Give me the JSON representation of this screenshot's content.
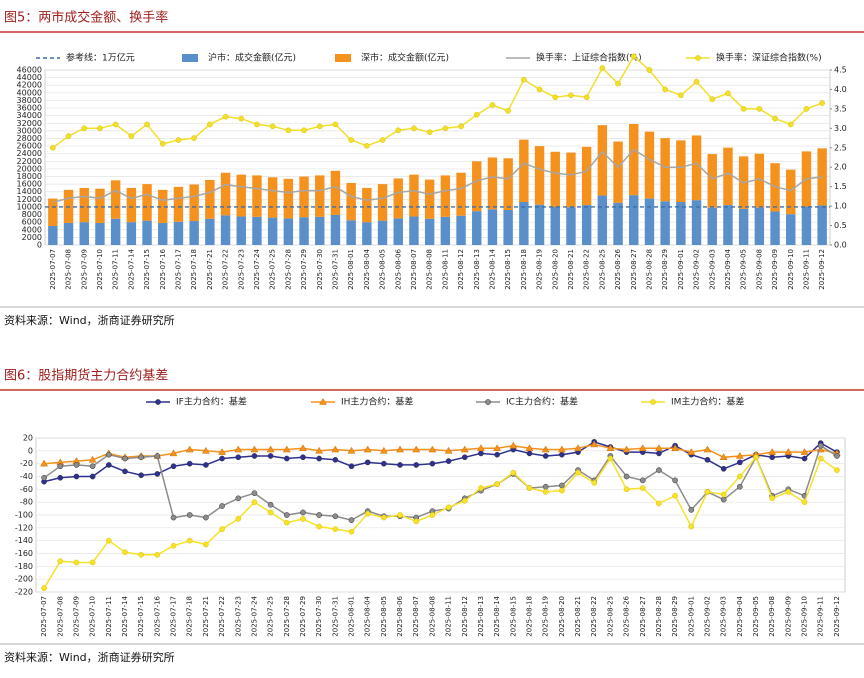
{
  "chart_data": [
    {
      "type": "combo",
      "title": "图5：两市成交金额、换手率",
      "source": "资料来源：Wind，浙商证券研究所",
      "categories": [
        "2025-07-07",
        "2025-07-08",
        "2025-07-09",
        "2025-07-10",
        "2025-07-11",
        "2025-07-14",
        "2025-07-15",
        "2025-07-16",
        "2025-07-17",
        "2025-07-18",
        "2025-07-21",
        "2025-07-22",
        "2025-07-23",
        "2025-07-24",
        "2025-07-25",
        "2025-07-28",
        "2025-07-29",
        "2025-07-30",
        "2025-07-31",
        "2025-08-01",
        "2025-08-04",
        "2025-08-05",
        "2025-08-06",
        "2025-08-07",
        "2025-08-08",
        "2025-08-11",
        "2025-08-12",
        "2025-08-13",
        "2025-08-14",
        "2025-08-15",
        "2025-08-18",
        "2025-08-19",
        "2025-08-20",
        "2025-08-21",
        "2025-08-22",
        "2025-08-25",
        "2025-08-26",
        "2025-08-27",
        "2025-08-28",
        "2025-08-29",
        "2025-09-01",
        "2025-09-02",
        "2025-09-03",
        "2025-09-04",
        "2025-09-05",
        "2025-09-08",
        "2025-09-09",
        "2025-09-10",
        "2025-09-11",
        "2025-09-12"
      ],
      "reference_line": {
        "name": "参考线：1万亿元",
        "value": 10000,
        "color": "#3a6ea8"
      },
      "series": [
        {
          "name": "沪市：成交金额(亿元)",
          "type": "bar",
          "color": "#5b8fc9",
          "values": [
            5000,
            5800,
            6000,
            5800,
            6900,
            6000,
            6400,
            5800,
            6100,
            6300,
            6900,
            7800,
            7500,
            7400,
            7200,
            7000,
            7300,
            7400,
            7900,
            6500,
            6000,
            6400,
            7000,
            7500,
            6900,
            7400,
            7700,
            8900,
            9400,
            9200,
            11300,
            10600,
            10000,
            9900,
            10500,
            13000,
            11100,
            13100,
            12200,
            11500,
            11300,
            11800,
            9800,
            10500,
            9500,
            9800,
            8800,
            8100,
            10100,
            10400
          ]
        },
        {
          "name": "深市：成交金额(亿元)",
          "type": "bar",
          "color": "#f5921e",
          "values": [
            7200,
            8700,
            9000,
            9000,
            10100,
            9000,
            9600,
            8700,
            9200,
            9600,
            10200,
            11200,
            11000,
            10900,
            10600,
            10400,
            10700,
            10900,
            11600,
            9800,
            9000,
            9600,
            10500,
            11000,
            10300,
            10900,
            11300,
            13100,
            13600,
            13600,
            16400,
            15400,
            14500,
            14400,
            15300,
            18500,
            16100,
            18700,
            17600,
            16600,
            16200,
            17000,
            14100,
            15100,
            13800,
            14200,
            12700,
            11700,
            14500,
            15000
          ]
        },
        {
          "name": "换手率：上证综合指数(%)",
          "type": "line",
          "axis": "y2",
          "color": "#a6a6a6",
          "values": [
            1.1,
            1.2,
            1.25,
            1.2,
            1.4,
            1.2,
            1.3,
            1.15,
            1.2,
            1.25,
            1.35,
            1.55,
            1.5,
            1.45,
            1.4,
            1.35,
            1.4,
            1.4,
            1.5,
            1.25,
            1.15,
            1.2,
            1.35,
            1.4,
            1.3,
            1.4,
            1.45,
            1.65,
            1.75,
            1.7,
            2.1,
            1.95,
            1.85,
            1.8,
            1.9,
            2.4,
            2.0,
            2.45,
            2.2,
            2.0,
            2.0,
            2.1,
            1.7,
            1.85,
            1.6,
            1.7,
            1.5,
            1.4,
            1.7,
            1.75
          ]
        },
        {
          "name": "换手率：深证综合指数(%)",
          "type": "line",
          "axis": "y2",
          "marker": "circle",
          "color": "#f2df2c",
          "values": [
            2.5,
            2.8,
            3.0,
            3.0,
            3.1,
            2.8,
            3.1,
            2.6,
            2.7,
            2.75,
            3.1,
            3.3,
            3.25,
            3.1,
            3.05,
            2.95,
            2.95,
            3.05,
            3.1,
            2.7,
            2.55,
            2.7,
            2.95,
            3.0,
            2.9,
            3.0,
            3.05,
            3.35,
            3.6,
            3.45,
            4.25,
            4.0,
            3.8,
            3.85,
            3.8,
            4.55,
            4.15,
            4.85,
            4.5,
            4.0,
            3.85,
            4.2,
            3.75,
            3.9,
            3.5,
            3.5,
            3.25,
            3.1,
            3.5,
            3.65
          ]
        }
      ],
      "ylim": [
        0,
        46000
      ],
      "yticks": [
        0,
        2000,
        4000,
        6000,
        8000,
        10000,
        12000,
        14000,
        16000,
        18000,
        20000,
        22000,
        24000,
        26000,
        28000,
        30000,
        32000,
        34000,
        36000,
        38000,
        40000,
        42000,
        44000,
        46000
      ],
      "y2lim": [
        0,
        4.5
      ],
      "y2ticks": [
        {
          "value": 0,
          "label": "0.0"
        },
        {
          "value": 0.5,
          "label": "0.5"
        },
        {
          "value": 1,
          "label": "1.0"
        },
        {
          "value": 1.5,
          "label": "1.5"
        },
        {
          "value": 2,
          "label": "2.0"
        },
        {
          "value": 2.5,
          "label": "2.5"
        },
        {
          "value": 3,
          "label": "3.0"
        },
        {
          "value": 3.5,
          "label": "3.5"
        },
        {
          "value": 4,
          "label": "4.0"
        },
        {
          "value": 4.5,
          "label": "4.5"
        }
      ],
      "grid": true
    },
    {
      "type": "line",
      "title": "图6：股指期货主力合约基差",
      "source": "资料来源：Wind，浙商证券研究所",
      "categories": [
        "2025-07-07",
        "2025-07-08",
        "2025-07-09",
        "2025-07-10",
        "2025-07-11",
        "2025-07-14",
        "2025-07-15",
        "2025-07-16",
        "2025-07-17",
        "2025-07-18",
        "2025-07-21",
        "2025-07-22",
        "2025-07-23",
        "2025-07-24",
        "2025-07-25",
        "2025-07-28",
        "2025-07-29",
        "2025-07-30",
        "2025-07-31",
        "2025-08-01",
        "2025-08-04",
        "2025-08-05",
        "2025-08-06",
        "2025-08-07",
        "2025-08-08",
        "2025-08-11",
        "2025-08-12",
        "2025-08-13",
        "2025-08-14",
        "2025-08-15",
        "2025-08-18",
        "2025-08-19",
        "2025-08-20",
        "2025-08-21",
        "2025-08-22",
        "2025-08-25",
        "2025-08-26",
        "2025-08-27",
        "2025-08-28",
        "2025-08-29",
        "2025-09-01",
        "2025-09-02",
        "2025-09-03",
        "2025-09-04",
        "2025-09-05",
        "2025-09-08",
        "2025-09-09",
        "2025-09-10",
        "2025-09-11",
        "2025-09-12"
      ],
      "series": [
        {
          "name": "IF主力合约：基差",
          "marker": "circle",
          "color": "#2e3192",
          "values": [
            -48,
            -42,
            -40,
            -40,
            -22,
            -32,
            -38,
            -36,
            -24,
            -20,
            -22,
            -12,
            -10,
            -8,
            -8,
            -12,
            -10,
            -12,
            -14,
            -24,
            -18,
            -20,
            -22,
            -22,
            -20,
            -16,
            -10,
            -4,
            -6,
            2,
            -4,
            -8,
            -6,
            -2,
            14,
            6,
            -2,
            -2,
            -4,
            8,
            -6,
            -14,
            -28,
            -18,
            -6,
            -10,
            -8,
            -12,
            12,
            -2
          ]
        },
        {
          "name": "IH主力合约：基差",
          "marker": "triangle",
          "color": "#f5921e",
          "values": [
            -20,
            -18,
            -16,
            -14,
            -4,
            -10,
            -8,
            -8,
            -4,
            2,
            0,
            -2,
            2,
            2,
            2,
            2,
            4,
            0,
            2,
            0,
            2,
            0,
            2,
            2,
            2,
            0,
            2,
            4,
            4,
            8,
            4,
            2,
            2,
            4,
            10,
            4,
            2,
            4,
            4,
            4,
            -2,
            2,
            -10,
            -8,
            -6,
            -2,
            -2,
            -2,
            2,
            -4
          ]
        },
        {
          "name": "IC主力合约：基差",
          "marker": "circle",
          "color": "#8c8c8c",
          "values": [
            -42,
            -24,
            -22,
            -24,
            -6,
            -12,
            -10,
            -8,
            -104,
            -100,
            -104,
            -86,
            -74,
            -66,
            -84,
            -100,
            -96,
            -100,
            -102,
            -108,
            -94,
            -102,
            -102,
            -104,
            -94,
            -90,
            -74,
            -62,
            -52,
            -36,
            -58,
            -56,
            -54,
            -30,
            -46,
            -8,
            -40,
            -46,
            -30,
            -46,
            -92,
            -64,
            -76,
            -56,
            -10,
            -70,
            -60,
            -70,
            8,
            -8
          ]
        },
        {
          "name": "IM主力合约：基差",
          "marker": "circle",
          "color": "#f7e12a",
          "values": [
            -214,
            -172,
            -174,
            -174,
            -140,
            -158,
            -162,
            -162,
            -148,
            -140,
            -146,
            -122,
            -106,
            -80,
            -96,
            -112,
            -106,
            -118,
            -122,
            -126,
            -98,
            -104,
            -100,
            -110,
            -100,
            -88,
            -78,
            -58,
            -52,
            -34,
            -58,
            -64,
            -62,
            -34,
            -50,
            -12,
            -60,
            -58,
            -82,
            -70,
            -118,
            -64,
            -68,
            -40,
            -10,
            -74,
            -64,
            -80,
            -12,
            -30
          ]
        }
      ],
      "ylim": [
        -220,
        20
      ],
      "yticks": [
        -220,
        -200,
        -180,
        -160,
        -140,
        -120,
        -100,
        -80,
        -60,
        -40,
        -20,
        0,
        20
      ],
      "grid": true
    }
  ]
}
